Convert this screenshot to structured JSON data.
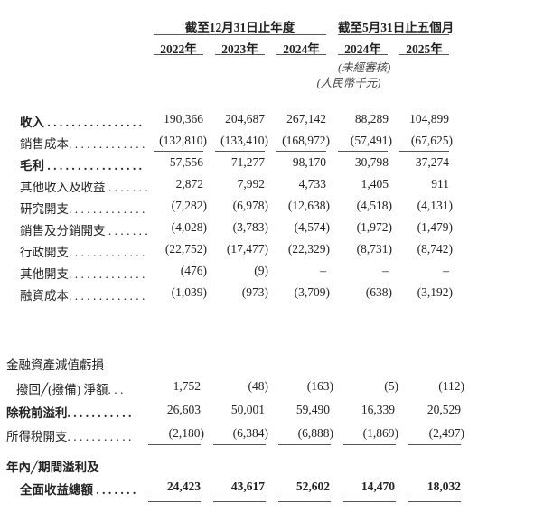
{
  "header": {
    "group1_title": "截至12月31日止年度",
    "group2_title": "截至5月31日止五個月",
    "years": [
      "2022年",
      "2023年",
      "2024年",
      "2024年",
      "2025年"
    ],
    "unaudited_note": "(未經審核)",
    "currency_note": "(人民幣千元)"
  },
  "rows_top": [
    {
      "label": "收入 . . . . . . . . . . . . . . . .",
      "bold": true,
      "values": [
        "190,366",
        "204,687",
        "267,142",
        "88,289",
        "104,899"
      ]
    },
    {
      "label": "銷售成本. . . . . . . . . . . . .",
      "bold": false,
      "values": [
        "(132,810)",
        "(133,410)",
        "(168,972)",
        "(57,491)",
        "(67,625)"
      ],
      "underline": true
    },
    {
      "label": "毛利 . . . . . . . . . . . . . . . .",
      "bold": true,
      "values": [
        "57,556",
        "71,277",
        "98,170",
        "30,798",
        "37,274"
      ]
    },
    {
      "label": "其他收入及收益 . . . . . . .",
      "bold": false,
      "values": [
        "2,872",
        "7,992",
        "4,733",
        "1,405",
        "911"
      ]
    },
    {
      "label": "研究開支. . . . . . . . . . . . .",
      "bold": false,
      "values": [
        "(7,282)",
        "(6,978)",
        "(12,638)",
        "(4,518)",
        "(4,131)"
      ]
    },
    {
      "label": "銷售及分銷開支 . . . . . . .",
      "bold": false,
      "values": [
        "(4,028)",
        "(3,783)",
        "(4,574)",
        "(1,972)",
        "(1,479)"
      ]
    },
    {
      "label": "行政開支. . . . . . . . . . . . .",
      "bold": false,
      "values": [
        "(22,752)",
        "(17,477)",
        "(22,329)",
        "(8,731)",
        "(8,742)"
      ]
    },
    {
      "label": "其他開支. . . . . . . . . . . . .",
      "bold": false,
      "values": [
        "(476)",
        "(9)",
        "–",
        "–",
        "–"
      ]
    },
    {
      "label": "融資成本. . . . . . . . . . . . .",
      "bold": false,
      "values": [
        "(1,039)",
        "(973)",
        "(3,709)",
        "(638)",
        "(3,192)"
      ]
    }
  ],
  "rows_bottom": [
    {
      "label": "金融資產減值虧損",
      "bold": false,
      "indent": false,
      "values": []
    },
    {
      "label": "撥回╱(撥備) 淨額. . .",
      "bold": false,
      "indent": true,
      "values": [
        "1,752",
        "(48)",
        "(163)",
        "(5)",
        "(112)"
      ]
    },
    {
      "label": "除稅前溢利. . . . . . . . . . .",
      "bold": true,
      "indent": false,
      "values": [
        "26,603",
        "50,001",
        "59,490",
        "16,339",
        "20,529"
      ]
    },
    {
      "label": "所得稅開支. . . . . . . . . . .",
      "bold": false,
      "indent": false,
      "values": [
        "(2,180)",
        "(6,384)",
        "(6,888)",
        "(1,869)",
        "(2,497)"
      ],
      "underline": true
    },
    {
      "label": "年內╱期間溢利及",
      "bold": true,
      "indent": false,
      "values": []
    },
    {
      "label": "全面收益總額 . . . . . . .",
      "bold": true,
      "indent": true,
      "values": [
        "24,423",
        "43,617",
        "52,602",
        "14,470",
        "18,032"
      ],
      "double_underline": true
    }
  ]
}
